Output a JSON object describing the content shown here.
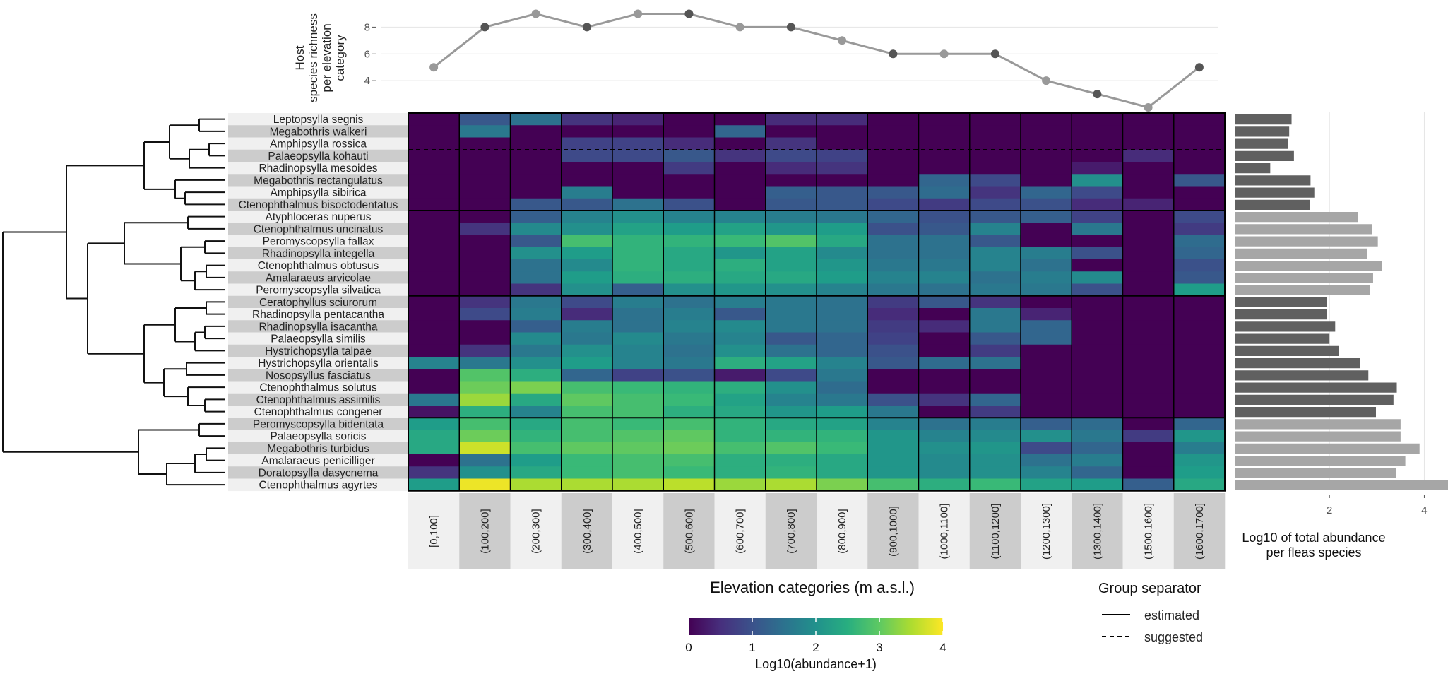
{
  "chart_data": {
    "type": "heatmap",
    "top_panel": {
      "type": "line",
      "ylabel_lines": [
        "Host",
        "species richness",
        "per elevation",
        "category"
      ],
      "yticks": [
        4,
        6,
        8
      ],
      "values": [
        5,
        8,
        9,
        8,
        9,
        9,
        8,
        8,
        7,
        6,
        6,
        6,
        4,
        3,
        2,
        5
      ],
      "ylim": [
        2,
        9.5
      ]
    },
    "heatmap": {
      "xlabel": "Elevation categories (m a.s.l.)",
      "categories": [
        "[0,100]",
        "(100,200]",
        "(200,300]",
        "(300,400]",
        "(400,500]",
        "(500,600]",
        "(600,700]",
        "(700,800]",
        "(800,900]",
        "(900,1000]",
        "(1000,1100]",
        "(1100,1200]",
        "(1200,1300]",
        "(1300,1400]",
        "(1500,1600]",
        "(1600,1700]"
      ],
      "species": [
        "Leptopsylla segnis",
        "Megabothris walkeri",
        "Amphipsylla rossica",
        "Palaeopsylla kohauti",
        "Rhadinopsylla mesoides",
        "Megabothris rectangulatus",
        "Amphipsylla sibirica",
        "Ctenophthalmus bisoctodentatus",
        "Atyphloceras nuperus",
        "Ctenophthalmus uncinatus",
        "Peromyscopsylla fallax",
        "Rhadinopsylla integella",
        "Ctenophthalmus obtusus",
        "Amalaraeus arvicolae",
        "Peromyscopsylla silvatica",
        "Ceratophyllus sciurorum",
        "Rhadinopsylla pentacantha",
        "Rhadinopsylla isacantha",
        "Palaeopsylla similis",
        "Hystrichopsylla talpae",
        "Hystrichopsylla orientalis",
        "Nosopsyllus fasciatus",
        "Ctenophthalmus solutus",
        "Ctenophthalmus assimilis",
        "Ctenophthalmus congener",
        "Peromyscopsylla bidentata",
        "Palaeopsylla soricis",
        "Megabothris turbidus",
        "Amalaraeus penicilliger",
        "Doratopsylla dasycnema",
        "Ctenophthalmus agyrtes"
      ],
      "values": [
        [
          0,
          1.1,
          1.5,
          0.6,
          0.4,
          0,
          0,
          0.5,
          0.5,
          0,
          0,
          0,
          0,
          0,
          0,
          0
        ],
        [
          0,
          1.6,
          0,
          0,
          0,
          0,
          1.3,
          0,
          0,
          0,
          0,
          0,
          0,
          0,
          0,
          0
        ],
        [
          0,
          0,
          0,
          0.8,
          0.8,
          0.5,
          0,
          0.6,
          0,
          0,
          0,
          0,
          0,
          0,
          0,
          0
        ],
        [
          0,
          0,
          0,
          0.9,
          0.9,
          1.1,
          0.6,
          0.9,
          0.8,
          0,
          0,
          0,
          0,
          0,
          0.5,
          0
        ],
        [
          0,
          0,
          0,
          0,
          0,
          0.7,
          0,
          0.5,
          0.6,
          0,
          0,
          0,
          0,
          0.3,
          0,
          0
        ],
        [
          0,
          0,
          0,
          0,
          0,
          0,
          0,
          0,
          0,
          0,
          1.3,
          0.9,
          0,
          2.0,
          0,
          1.1
        ],
        [
          0,
          0,
          0,
          1.7,
          0,
          0,
          0,
          1.2,
          1.1,
          1.1,
          1.4,
          0.6,
          1.3,
          0.9,
          0,
          0
        ],
        [
          0,
          0,
          1.1,
          1.1,
          1.5,
          1.0,
          0,
          1.1,
          1.1,
          0.9,
          0.7,
          0.9,
          1.0,
          0.5,
          0.4,
          0
        ],
        [
          0,
          0,
          1.2,
          1.8,
          2.0,
          1.8,
          1.8,
          1.7,
          1.6,
          1.3,
          1.0,
          1.1,
          1.2,
          0.8,
          0,
          0.9
        ],
        [
          0,
          0.6,
          1.9,
          2.0,
          2.3,
          2.2,
          2.3,
          2.1,
          2.2,
          1.0,
          1.1,
          1.8,
          0,
          1.6,
          0,
          0.7
        ],
        [
          0,
          0,
          1.1,
          2.8,
          2.6,
          2.6,
          2.7,
          2.9,
          2.4,
          1.5,
          1.5,
          1.1,
          0,
          0,
          0,
          1.4
        ],
        [
          0,
          0,
          2.0,
          2.2,
          2.6,
          2.4,
          2.1,
          2.3,
          1.9,
          1.5,
          1.5,
          1.8,
          1.7,
          1.0,
          0,
          1.3
        ],
        [
          0,
          0,
          1.5,
          1.9,
          2.6,
          2.4,
          2.5,
          2.3,
          2.1,
          1.6,
          1.6,
          1.8,
          1.5,
          0,
          0,
          1.0
        ],
        [
          0,
          0,
          1.5,
          2.2,
          2.5,
          2.5,
          2.4,
          2.4,
          2.2,
          1.8,
          1.8,
          1.5,
          1.7,
          1.9,
          0,
          1.1
        ],
        [
          0,
          0,
          0.6,
          2.0,
          1.2,
          2.0,
          2.1,
          2.0,
          1.8,
          1.6,
          1.5,
          1.6,
          1.6,
          1.0,
          0,
          2.2
        ],
        [
          0,
          0.6,
          1.6,
          0.9,
          1.7,
          1.5,
          1.7,
          1.6,
          1.5,
          0.7,
          1.1,
          0.6,
          0,
          0,
          0,
          0
        ],
        [
          0,
          0.9,
          1.7,
          0.5,
          1.5,
          1.7,
          1.1,
          1.6,
          1.5,
          0.5,
          0,
          1.6,
          0.4,
          0,
          0,
          0
        ],
        [
          0,
          0,
          1.2,
          1.7,
          1.5,
          1.8,
          1.9,
          1.6,
          1.5,
          0.7,
          0.5,
          1.6,
          1.3,
          0,
          0,
          0
        ],
        [
          0,
          0,
          1.9,
          1.6,
          1.9,
          1.6,
          1.8,
          1.1,
          1.3,
          0.8,
          0,
          1.1,
          1.3,
          0,
          0,
          0
        ],
        [
          0,
          0.6,
          1.6,
          2.0,
          1.8,
          1.5,
          2.0,
          1.5,
          1.3,
          1.0,
          0,
          0.7,
          0,
          0,
          0,
          0
        ],
        [
          1.8,
          1.6,
          2.0,
          2.2,
          1.8,
          1.6,
          2.5,
          2.3,
          1.8,
          1.1,
          1.4,
          1.5,
          0,
          0,
          0,
          0
        ],
        [
          0,
          2.9,
          2.5,
          1.3,
          0.8,
          1.0,
          0.3,
          0.9,
          1.6,
          0,
          0,
          0,
          0,
          0,
          0,
          0
        ],
        [
          0,
          3.1,
          3.2,
          2.8,
          2.7,
          2.6,
          2.5,
          2.0,
          1.4,
          0,
          0,
          0,
          0,
          0,
          0,
          0
        ],
        [
          1.6,
          3.4,
          2.4,
          3.0,
          2.8,
          2.7,
          2.3,
          1.8,
          1.6,
          1.0,
          0.6,
          1.3,
          0,
          0,
          0,
          0
        ],
        [
          0.2,
          2.5,
          1.8,
          2.8,
          2.8,
          2.5,
          2.4,
          2.1,
          2.2,
          1.6,
          0,
          0.7,
          0,
          0,
          0,
          0
        ],
        [
          2.2,
          2.8,
          2.4,
          2.8,
          2.7,
          2.8,
          2.6,
          2.4,
          2.3,
          1.8,
          1.5,
          1.7,
          1.2,
          1.4,
          0,
          1.3
        ],
        [
          2.4,
          3.1,
          2.6,
          2.8,
          2.9,
          3.0,
          2.6,
          2.6,
          2.6,
          2.1,
          1.8,
          1.9,
          2.0,
          1.6,
          0.7,
          2.1
        ],
        [
          2.4,
          3.7,
          2.8,
          3.0,
          3.0,
          3.1,
          2.8,
          2.9,
          2.7,
          2.1,
          2.0,
          2.1,
          0.9,
          1.3,
          0,
          1.7
        ],
        [
          0,
          1.5,
          2.2,
          2.7,
          2.8,
          2.8,
          2.5,
          2.5,
          2.4,
          2.1,
          1.9,
          2.0,
          1.5,
          1.7,
          0,
          2.1
        ],
        [
          0.6,
          2.0,
          2.4,
          2.7,
          2.8,
          2.7,
          2.5,
          2.6,
          2.4,
          2.1,
          1.9,
          2.0,
          1.8,
          1.3,
          0,
          2.2
        ],
        [
          2.2,
          3.9,
          3.5,
          3.5,
          3.5,
          3.6,
          3.4,
          3.5,
          3.2,
          2.8,
          2.5,
          2.7,
          2.3,
          2.2,
          1.2,
          2.4
        ]
      ],
      "group_separators_estimated_after": [
        7,
        14,
        24
      ],
      "group_separators_suggested_after": [
        2
      ]
    },
    "right_panel": {
      "type": "bar",
      "xlabel_lines": [
        "Log10 of total abundance",
        "per fleas species"
      ],
      "xticks": [
        2,
        4
      ],
      "xlim": [
        0,
        4.5
      ],
      "values": [
        1.2,
        1.15,
        1.13,
        1.25,
        0.75,
        1.6,
        1.68,
        1.58,
        2.6,
        2.9,
        3.02,
        2.8,
        3.1,
        2.92,
        2.85,
        1.95,
        1.95,
        2.12,
        2.0,
        2.2,
        2.65,
        2.82,
        3.42,
        3.35,
        2.98,
        3.5,
        3.5,
        3.9,
        3.6,
        3.4,
        4.5
      ],
      "group_shades": [
        "#606060",
        "#a6a6a6",
        "#606060",
        "#a6a6a6"
      ]
    },
    "colorbar": {
      "label": "Log10(abundance+1)",
      "ticks": [
        0,
        1,
        2,
        3,
        4
      ],
      "range": [
        0,
        4
      ],
      "colormap": "viridis"
    },
    "legend": {
      "title": "Group separator",
      "entries": [
        {
          "label": "estimated",
          "linestyle": "solid"
        },
        {
          "label": "suggested",
          "linestyle": "dashed"
        }
      ]
    },
    "dendrogram": {
      "position": "left"
    }
  },
  "colors": {
    "line": "#999999",
    "point_dark": "#555555",
    "point_light": "#999999",
    "band_light": "#f0f0f0",
    "band_dark": "#cccccc",
    "grid": "#e5e5e5",
    "separator": "#000000"
  }
}
